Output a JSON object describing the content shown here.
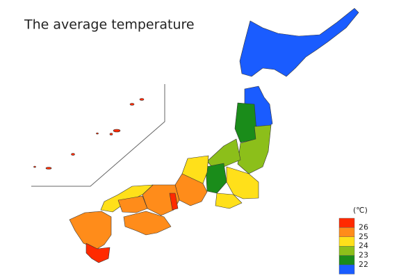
{
  "title": "The average temperature",
  "legend": {
    "unit": "(℃)",
    "colors": [
      "#ff2a00",
      "#ff8c1a",
      "#ffe01a",
      "#8cbf1a",
      "#1a8c1a",
      "#1a5cff"
    ],
    "labels": [
      26,
      25,
      24,
      23,
      22
    ]
  }
}
